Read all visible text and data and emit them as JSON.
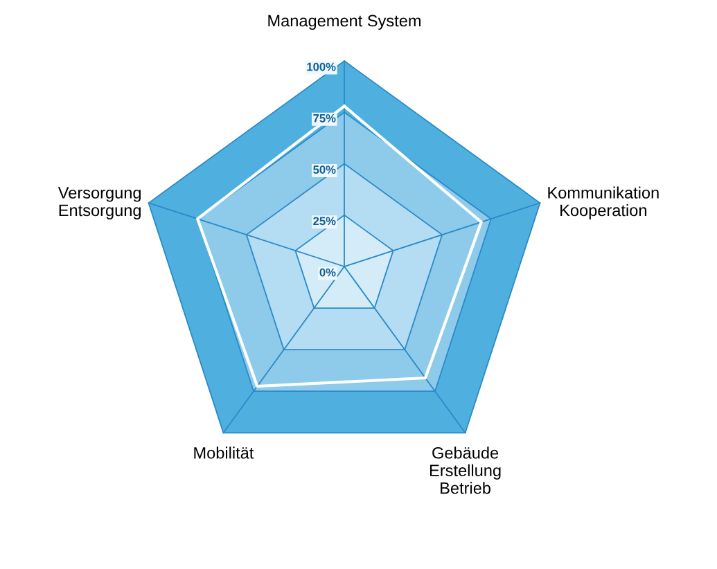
{
  "chart_data": {
    "type": "radar",
    "categories": [
      "Management System",
      "Kommunikation\nKooperation",
      "Gebäude\nErstellung\nBetrieb",
      "Mobilität",
      "Versorgung\nEntsorgung"
    ],
    "series": [
      {
        "color": "#ffffff",
        "values": [
          78,
          70,
          67,
          72,
          75
        ]
      }
    ],
    "ylim": [
      0,
      100
    ],
    "yticks": [
      {
        "value": 0,
        "label": "0%"
      },
      {
        "value": 25,
        "label": "25%"
      },
      {
        "value": 50,
        "label": "50%"
      },
      {
        "value": 75,
        "label": "75%"
      },
      {
        "value": 100,
        "label": "100%"
      }
    ]
  }
}
